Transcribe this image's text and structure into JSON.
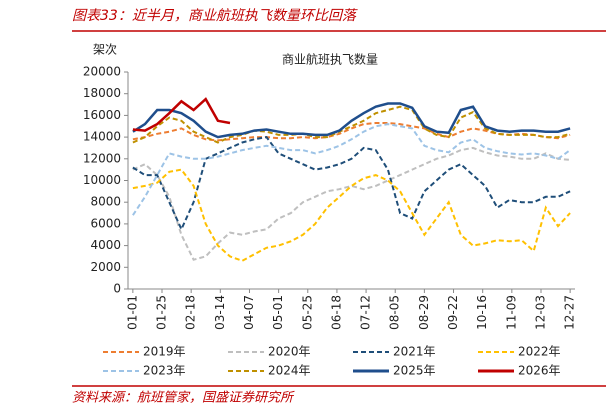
{
  "header": {
    "title": "图表33：近半月，商业航班执飞数量环比回落"
  },
  "chart_data": {
    "type": "line",
    "title": "商业航班执飞数量",
    "y_label": "架次",
    "x": [
      0,
      10,
      20,
      30,
      40,
      50,
      60,
      70,
      80,
      90,
      100,
      110,
      120,
      130,
      140,
      150,
      160,
      170,
      180,
      190,
      200,
      210,
      220,
      230,
      240,
      250,
      260,
      270,
      280,
      290,
      300,
      310,
      320,
      330,
      340,
      350,
      360
    ],
    "xlim": [
      -4,
      364
    ],
    "xticks": [
      {
        "value": 0,
        "label": "01-01"
      },
      {
        "value": 24,
        "label": "01-25"
      },
      {
        "value": 48,
        "label": "02-18"
      },
      {
        "value": 72,
        "label": "03-14"
      },
      {
        "value": 96,
        "label": "04-07"
      },
      {
        "value": 120,
        "label": "05-01"
      },
      {
        "value": 144,
        "label": "05-25"
      },
      {
        "value": 168,
        "label": "06-18"
      },
      {
        "value": 192,
        "label": "07-12"
      },
      {
        "value": 216,
        "label": "08-05"
      },
      {
        "value": 240,
        "label": "08-29"
      },
      {
        "value": 264,
        "label": "09-22"
      },
      {
        "value": 288,
        "label": "10-16"
      },
      {
        "value": 312,
        "label": "11-09"
      },
      {
        "value": 336,
        "label": "12-03"
      },
      {
        "value": 360,
        "label": "12-27"
      }
    ],
    "ylim": [
      0,
      20000
    ],
    "yticks": [
      0,
      2000,
      4000,
      6000,
      8000,
      10000,
      12000,
      14000,
      16000,
      18000,
      20000
    ],
    "series": [
      {
        "name": "2019年",
        "color": "#ed7d31",
        "dash": true,
        "values": [
          13800,
          14000,
          14300,
          14500,
          14800,
          14200,
          13800,
          13700,
          13800,
          13900,
          14000,
          14000,
          13900,
          13900,
          14000,
          13900,
          14000,
          14300,
          14800,
          15200,
          15300,
          15300,
          15200,
          15000,
          14800,
          14300,
          14000,
          14500,
          14800,
          14600,
          14300,
          14200,
          14300,
          14200,
          14000,
          13900,
          14200
        ]
      },
      {
        "name": "2020年",
        "color": "#bfbfbf",
        "dash": true,
        "values": [
          11000,
          11500,
          10500,
          8500,
          5000,
          2700,
          3000,
          4200,
          5200,
          5000,
          5300,
          5500,
          6500,
          7000,
          8000,
          8500,
          9000,
          9200,
          9500,
          9200,
          9500,
          10000,
          10500,
          11000,
          11500,
          12000,
          12300,
          12800,
          13000,
          12600,
          12300,
          12200,
          12000,
          12000,
          12500,
          12000,
          11900
        ]
      },
      {
        "name": "2021年",
        "color": "#1f4e79",
        "dash": true,
        "values": [
          11200,
          10500,
          10500,
          8000,
          5500,
          8000,
          12000,
          12500,
          13000,
          13500,
          13800,
          14000,
          12500,
          12000,
          11500,
          11000,
          11200,
          11500,
          12000,
          13000,
          12800,
          11000,
          7000,
          6500,
          9000,
          10000,
          11000,
          11500,
          10500,
          9500,
          7500,
          8200,
          8000,
          8000,
          8500,
          8500,
          9000
        ]
      },
      {
        "name": "2022年",
        "color": "#ffc000",
        "dash": true,
        "values": [
          9300,
          9500,
          9800,
          10800,
          11000,
          9500,
          6000,
          4000,
          3000,
          2600,
          3200,
          3800,
          4000,
          4400,
          5000,
          6000,
          7500,
          8500,
          9500,
          10200,
          10500,
          10000,
          9000,
          7000,
          5000,
          6500,
          8000,
          5000,
          4000,
          4200,
          4500,
          4400,
          4500,
          3500,
          7500,
          5800,
          7000
        ]
      },
      {
        "name": "2023年",
        "color": "#9dc3e6",
        "dash": true,
        "values": [
          6800,
          8500,
          10500,
          12500,
          12200,
          12000,
          12000,
          12200,
          12500,
          12800,
          13000,
          13200,
          13000,
          12800,
          12800,
          12500,
          12800,
          13200,
          13800,
          14500,
          15000,
          15200,
          15000,
          14800,
          13200,
          12800,
          12600,
          13500,
          13800,
          13000,
          12700,
          12500,
          12400,
          12500,
          12300,
          12000,
          12800
        ]
      },
      {
        "name": "2024年",
        "color": "#bf9000",
        "dash": true,
        "values": [
          13500,
          14000,
          15000,
          15800,
          15500,
          14500,
          14000,
          13500,
          14000,
          14200,
          14600,
          14500,
          14200,
          14200,
          14300,
          14000,
          14000,
          14500,
          15000,
          15500,
          16200,
          16500,
          16800,
          16500,
          14800,
          14200,
          14000,
          15800,
          16300,
          14800,
          14300,
          14200,
          14200,
          14200,
          14000,
          14000,
          14300
        ]
      },
      {
        "name": "2025年",
        "color": "#1f4e8c",
        "dash": false,
        "values": [
          14500,
          15200,
          16500,
          16500,
          16200,
          15500,
          14500,
          14000,
          14200,
          14300,
          14600,
          14700,
          14500,
          14300,
          14300,
          14200,
          14200,
          14600,
          15500,
          16200,
          16800,
          17100,
          17100,
          16700,
          15000,
          14500,
          14400,
          16500,
          16800,
          15000,
          14600,
          14500,
          14600,
          14600,
          14500,
          14500,
          14800
        ]
      },
      {
        "name": "2026年",
        "color": "#c00000",
        "dash": false,
        "values": [
          14700,
          14600,
          15200,
          16200,
          17300,
          16500,
          17500,
          15500,
          15300,
          null,
          null,
          null,
          null,
          null,
          null,
          null,
          null,
          null,
          null,
          null,
          null,
          null,
          null,
          null,
          null,
          null,
          null,
          null,
          null,
          null,
          null,
          null,
          null,
          null,
          null,
          null,
          null
        ]
      }
    ]
  },
  "source": "资料来源：航班管家，国盛证券研究所"
}
